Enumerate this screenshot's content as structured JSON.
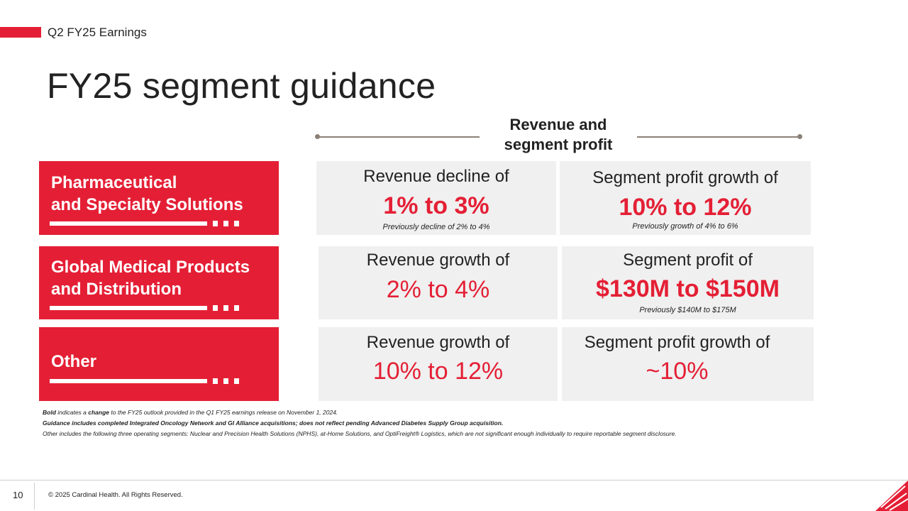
{
  "header": {
    "eyebrow": "Q2 FY25 Earnings",
    "title": "FY25 segment guidance"
  },
  "column_header": {
    "line1": "Revenue and",
    "line2": "segment profit"
  },
  "segments": [
    {
      "name_line1": "Pharmaceutical",
      "name_line2": "and Specialty Solutions",
      "revenue": {
        "lead": "Revenue decline of",
        "value": "1% to 3%",
        "previous": "Previously decline of 2% to 4%"
      },
      "profit": {
        "lead": "Segment profit growth of",
        "value": "10% to 12%",
        "previous": "Previously growth of 4% to 6%"
      }
    },
    {
      "name_line1": "Global Medical Products",
      "name_line2": "and Distribution",
      "revenue": {
        "lead": "Revenue growth of",
        "value": "2% to 4%"
      },
      "profit": {
        "lead": "Segment profit of",
        "value": "$130M to $150M",
        "previous": "Previously $140M to $175M"
      }
    },
    {
      "name_line1": "Other",
      "revenue": {
        "lead": "Revenue growth of",
        "value": "10% to 12%"
      },
      "profit": {
        "lead": "Segment profit growth of",
        "value": "~10%"
      }
    }
  ],
  "notes": {
    "note1_bold": "Bold",
    "note1_a": " indicates a ",
    "note1_change": "change",
    "note1_b": " to the FY25 outlook provided in the Q1 FY25 earnings release on November 1, 2024.",
    "note2": "Guidance includes completed Integrated Oncology Network and GI Alliance acquisitions; does not reflect pending Advanced Diabetes Supply Group acquisition.",
    "note3": "Other includes the following three operating segments: Nuclear and Precision Health Solutions (NPHS), at-Home Solutions, and OptiFreight® Logistics, which are not significant enough individually to require reportable segment disclosure."
  },
  "footer": {
    "page_number": "10",
    "copyright": "© 2025 Cardinal Health. All Rights Reserved."
  },
  "colors": {
    "accent_red": "#e41f35",
    "cell_gray": "#f0f0f0",
    "rule_gray": "#8a8077"
  },
  "logo_icon": "cardinal-health-logo"
}
